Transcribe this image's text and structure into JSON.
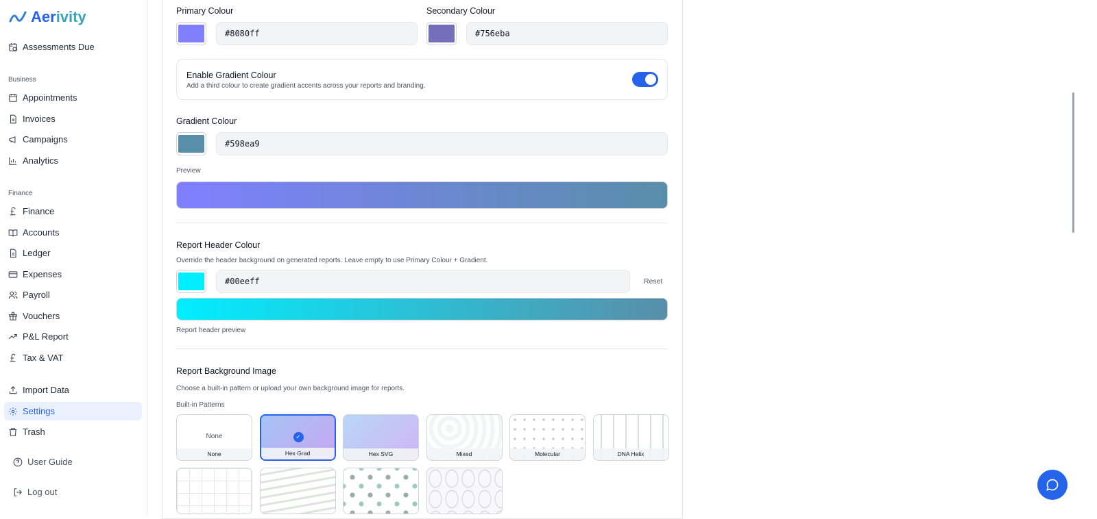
{
  "brand": {
    "name_a": "Aer",
    "name_b": "ivity"
  },
  "sidebar": {
    "top": [
      {
        "label": "Assessments Due",
        "icon": "calendar-clock-icon"
      }
    ],
    "business_title": "Business",
    "business": [
      {
        "label": "Appointments"
      },
      {
        "label": "Invoices"
      },
      {
        "label": "Campaigns"
      },
      {
        "label": "Analytics"
      }
    ],
    "finance_title": "Finance",
    "finance": [
      {
        "label": "Finance"
      },
      {
        "label": "Accounts"
      },
      {
        "label": "Ledger"
      },
      {
        "label": "Expenses"
      },
      {
        "label": "Payroll"
      },
      {
        "label": "Vouchers"
      },
      {
        "label": "P&L Report"
      },
      {
        "label": "Tax & VAT"
      }
    ],
    "other": [
      {
        "label": "Import Data"
      },
      {
        "label": "Settings",
        "active": true
      },
      {
        "label": "Trash"
      }
    ],
    "footer": [
      {
        "label": "User Guide"
      },
      {
        "label": "Log out"
      }
    ]
  },
  "branding": {
    "primary_label": "Primary Colour",
    "primary_value": "#8080ff",
    "secondary_label": "Secondary Colour",
    "secondary_value": "#756eba",
    "gradient_toggle_title": "Enable Gradient Colour",
    "gradient_toggle_desc": "Add a third colour to create gradient accents across your reports and branding.",
    "gradient_enabled": true,
    "gradient_label": "Gradient Colour",
    "gradient_value": "#598ea9",
    "preview_label": "Preview",
    "header_label": "Report Header Colour",
    "header_desc": "Override the header background on generated reports. Leave empty to use Primary Colour + Gradient.",
    "header_value": "#00eeff",
    "reset_label": "Reset",
    "header_preview_label": "Report header preview",
    "bg_label": "Report Background Image",
    "bg_desc": "Choose a built-in pattern or upload your own background image for reports.",
    "patterns_label": "Built-in Patterns",
    "none_text": "None",
    "patterns": [
      {
        "name": "None"
      },
      {
        "name": "Hex Grad",
        "selected": true
      },
      {
        "name": "Hex SVG"
      },
      {
        "name": "Mixed"
      },
      {
        "name": "Molecular"
      },
      {
        "name": "DNA Helix"
      },
      {
        "name": ""
      },
      {
        "name": ""
      },
      {
        "name": ""
      },
      {
        "name": ""
      }
    ]
  },
  "colors": {
    "accent": "#2563eb"
  }
}
